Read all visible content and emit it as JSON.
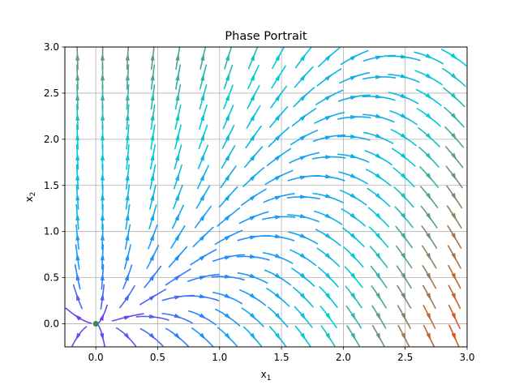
{
  "chart_data": {
    "type": "streamplot",
    "title": "Phase Portrait",
    "xlabel": "x",
    "xlabel_sub": "1",
    "ylabel": "x",
    "ylabel_sub": "2",
    "xlim": [
      -0.25,
      3.0
    ],
    "ylim": [
      -0.25,
      3.0
    ],
    "xticks": [
      0.0,
      0.5,
      1.0,
      1.5,
      2.0,
      2.5,
      3.0
    ],
    "xtick_labels": [
      "0.0",
      "0.5",
      "1.0",
      "1.5",
      "2.0",
      "2.5",
      "3.0"
    ],
    "yticks": [
      0.0,
      0.5,
      1.0,
      1.5,
      2.0,
      2.5,
      3.0
    ],
    "ytick_labels": [
      "0.0",
      "0.5",
      "1.0",
      "1.5",
      "2.0",
      "2.5",
      "3.0"
    ],
    "grid": true,
    "equilibrium": {
      "x": 0.0,
      "y": 0.0,
      "color": "#2e8b57"
    },
    "vector_field": {
      "dx1": "x1",
      "dx2": "2*x2 - x1^2"
    },
    "colormap": [
      "#8a2be2",
      "#1e90ff",
      "#00ced1",
      "#ff4500"
    ]
  }
}
